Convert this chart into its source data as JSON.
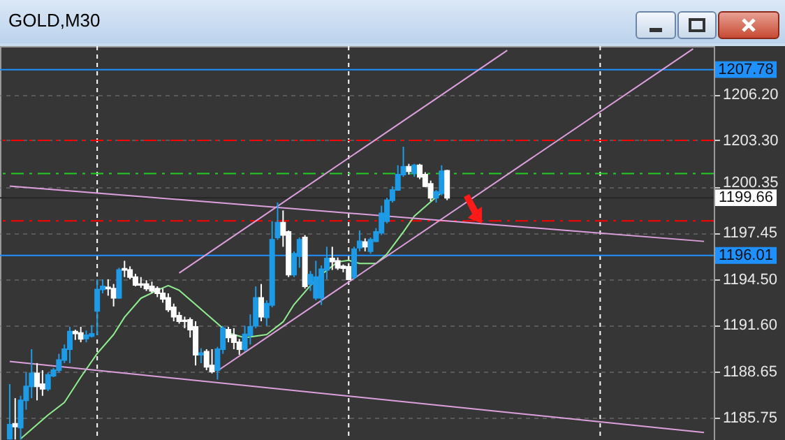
{
  "chart_data": {
    "type": "candlestick",
    "title": "GOLD,M30",
    "categories": [
      null,
      null,
      null,
      null,
      null,
      null,
      null,
      null,
      null,
      null,
      null,
      null,
      null,
      null,
      null,
      null,
      null,
      null,
      null,
      null,
      null,
      null,
      null,
      null,
      null,
      null,
      null,
      null,
      null,
      null,
      null,
      null,
      null,
      null,
      null,
      null,
      null,
      null,
      null,
      null,
      null,
      null,
      null,
      null,
      null,
      null,
      null,
      null,
      null,
      null,
      null,
      null,
      null,
      null,
      null,
      null,
      null,
      null,
      null,
      null,
      null,
      null,
      null,
      null,
      null,
      null,
      null,
      null,
      null,
      null,
      null,
      null,
      null,
      null,
      null,
      null,
      null,
      null,
      null,
      null,
      null,
      null,
      null,
      null,
      null,
      null,
      null,
      null,
      null,
      null,
      null,
      null,
      null,
      null,
      null,
      null,
      null,
      null,
      null,
      null,
      null,
      null,
      null,
      null,
      null,
      null,
      null,
      null,
      null,
      null,
      null,
      null,
      null,
      null,
      null,
      null,
      null,
      null,
      null,
      null,
      null,
      null,
      null,
      null,
      null,
      null,
      null,
      null
    ],
    "ohlc": [
      [
        1184.4,
        1187.86,
        1184.35,
        1185.29
      ],
      [
        1185.35,
        1186.97,
        1184.35,
        1185.17
      ],
      [
        1185.11,
        1187.12,
        1184.35,
        1186.83
      ],
      [
        1186.83,
        1188.59,
        1186.24,
        1187.71
      ],
      [
        1187.71,
        1190.07,
        1186.97,
        1188.54
      ],
      [
        1188.54,
        1189.19,
        1186.83,
        1187.71
      ],
      [
        1187.86,
        1188.74,
        1187.12,
        1187.56
      ],
      [
        1187.56,
        1188.59,
        1187.42,
        1188.45
      ],
      [
        1188.39,
        1188.89,
        1188.3,
        1188.74
      ],
      [
        1188.74,
        1189.78,
        1188.59,
        1189.39
      ],
      [
        1189.39,
        1190.37,
        1189.19,
        1190.07
      ],
      [
        1190.07,
        1191.49,
        1189.19,
        1191.19
      ],
      [
        1191.19,
        1191.31,
        1190.66,
        1191.07
      ],
      [
        1191.1,
        1191.49,
        1190.51,
        1190.72
      ],
      [
        1190.75,
        1191.25,
        1190.51,
        1190.96
      ],
      [
        1190.9,
        1191.6,
        1190.81,
        1191.04
      ],
      [
        1192.49,
        1194.5,
        1190.96,
        1193.85
      ],
      [
        1193.85,
        1194.5,
        1193.61,
        1194.05
      ],
      [
        1193.99,
        1194.5,
        1193.46,
        1193.91
      ],
      [
        1193.91,
        1194.2,
        1192.78,
        1193.32
      ],
      [
        1193.32,
        1195.23,
        1193.26,
        1195.09
      ],
      [
        1195.17,
        1195.67,
        1194.64,
        1195.09
      ],
      [
        1195.09,
        1195.32,
        1194.5,
        1194.64
      ],
      [
        1194.64,
        1194.85,
        1194.05,
        1194.14
      ],
      [
        1194.2,
        1194.64,
        1193.96,
        1194.14
      ],
      [
        1194.2,
        1194.44,
        1193.76,
        1193.91
      ],
      [
        1194.05,
        1194.35,
        1193.61,
        1193.76
      ],
      [
        1193.91,
        1194.05,
        1193.37,
        1193.61
      ],
      [
        1193.61,
        1193.91,
        1193.02,
        1193.26
      ],
      [
        1193.32,
        1193.61,
        1192.43,
        1192.58
      ],
      [
        1192.72,
        1192.96,
        1191.84,
        1192.13
      ],
      [
        1192.19,
        1192.43,
        1191.69,
        1191.84
      ],
      [
        1191.9,
        1192.13,
        1191.4,
        1191.84
      ],
      [
        1191.93,
        1192.08,
        1190.81,
        1191.31
      ],
      [
        1191.49,
        1191.84,
        1189.04,
        1189.72
      ],
      [
        1189.72,
        1190.13,
        1189.19,
        1189.83
      ],
      [
        1189.92,
        1190.07,
        1188.74,
        1188.95
      ],
      [
        1189.04,
        1190.07,
        1188.54,
        1188.65
      ],
      [
        1188.74,
        1190.22,
        1188.15,
        1190.07
      ],
      [
        1190.07,
        1191.55,
        1189.78,
        1191.4
      ],
      [
        1191.31,
        1191.49,
        1190.51,
        1190.81
      ],
      [
        1190.96,
        1191.4,
        1190.07,
        1190.51
      ],
      [
        1190.51,
        1190.72,
        1189.72,
        1190.07
      ],
      [
        1190.07,
        1191.55,
        1189.92,
        1191.01
      ],
      [
        1190.96,
        1192.28,
        1190.37,
        1191.49
      ],
      [
        1191.55,
        1194.05,
        1191.4,
        1193.32
      ],
      [
        1193.32,
        1194.2,
        1191.84,
        1192.13
      ],
      [
        1192.08,
        1193.17,
        1191.55,
        1192.96
      ],
      [
        1192.87,
        1198.18,
        1192.72,
        1197.0
      ],
      [
        1197.15,
        1199.36,
        1197.0,
        1198.09
      ],
      [
        1198.09,
        1198.86,
        1196.56,
        1197.3
      ],
      [
        1197.5,
        1197.59,
        1194.64,
        1194.79
      ],
      [
        1194.79,
        1196.27,
        1194.64,
        1196.12
      ],
      [
        1195.97,
        1197.15,
        1195.23,
        1197.0
      ],
      [
        1197.15,
        1197.3,
        1193.91,
        1194.05
      ],
      [
        1194.2,
        1195.03,
        1193.76,
        1194.79
      ],
      [
        1193.32,
        1195.67,
        1193.17,
        1194.64
      ],
      [
        1193.32,
        1195.38,
        1192.87,
        1195.14
      ],
      [
        1195.09,
        1196.56,
        1194.5,
        1195.82
      ],
      [
        1195.82,
        1196.56,
        1195.09,
        1195.62
      ],
      [
        1195.67,
        1195.88,
        1195.09,
        1195.23
      ],
      [
        1195.32,
        1195.44,
        1194.94,
        1195.2
      ],
      [
        1195.29,
        1195.53,
        1194.44,
        1194.5
      ],
      [
        1194.64,
        1196.56,
        1194.5,
        1196.41
      ],
      [
        1196.5,
        1197.59,
        1196.27,
        1196.91
      ],
      [
        1196.86,
        1197.09,
        1196.27,
        1196.56
      ],
      [
        1196.27,
        1197.15,
        1196.12,
        1197.0
      ],
      [
        1196.91,
        1197.74,
        1196.86,
        1197.5
      ],
      [
        1197.45,
        1199.16,
        1197.3,
        1198.68
      ],
      [
        1198.18,
        1199.66,
        1198.04,
        1199.51
      ],
      [
        1199.51,
        1200.39,
        1199.36,
        1200.16
      ],
      [
        1200.16,
        1201.72,
        1200.1,
        1201.13
      ],
      [
        1201.13,
        1202.9,
        1200.99,
        1201.63
      ],
      [
        1201.63,
        1201.81,
        1201.13,
        1201.34
      ],
      [
        1201.22,
        1201.81,
        1200.99,
        1201.72
      ],
      [
        1201.72,
        1201.81,
        1200.84,
        1200.99
      ],
      [
        1201.13,
        1201.28,
        1200.34,
        1200.39
      ],
      [
        1200.54,
        1200.75,
        1199.45,
        1199.66
      ],
      [
        1199.66,
        1200.16,
        1199.36,
        1200.04
      ],
      [
        1199.95,
        1201.72,
        1199.81,
        1201.34
      ],
      [
        1201.37,
        1201.43,
        1199.51,
        1199.66
      ],
      null,
      null,
      null,
      null,
      null,
      null,
      null,
      null,
      null,
      null,
      null,
      null,
      null,
      null,
      null,
      null,
      null,
      null,
      null,
      null,
      null,
      null,
      null,
      null,
      null,
      null,
      null,
      null,
      null,
      null,
      null,
      null,
      null,
      null,
      null,
      null,
      null,
      null,
      null,
      null,
      null,
      null,
      null,
      null,
      null,
      null,
      null
    ],
    "colors": [
      "#1e9be6",
      "#ffffff",
      "#1e9be6",
      "#1e9be6",
      "#1e9be6",
      "#ffffff",
      "#ffffff",
      "#1e9be6",
      "#1e9be6",
      "#1e9be6",
      "#1e9be6",
      "#1e9be6",
      "#ffffff",
      "#ffffff",
      "#1e9be6",
      "#1e9be6",
      "#1e9be6",
      "#1e9be6",
      "#ffffff",
      "#ffffff",
      "#1e9be6",
      "#ffffff",
      "#ffffff",
      "#ffffff",
      "#ffffff",
      "#ffffff",
      "#ffffff",
      "#ffffff",
      "#ffffff",
      "#ffffff",
      "#ffffff",
      "#ffffff",
      "#ffffff",
      "#ffffff",
      "#ffffff",
      "#1e9be6",
      "#ffffff",
      "#ffffff",
      "#1e9be6",
      "#1e9be6",
      "#ffffff",
      "#ffffff",
      "#ffffff",
      "#1e9be6",
      "#1e9be6",
      "#1e9be6",
      "#ffffff",
      "#1e9be6",
      "#1e9be6",
      "#1e9be6",
      "#ffffff",
      "#ffffff",
      "#1e9be6",
      "#1e9be6",
      "#ffffff",
      "#1e9be6",
      "#1e9be6",
      "#1e9be6",
      "#1e9be6",
      "#ffffff",
      "#ffffff",
      "#ffffff",
      "#ffffff",
      "#1e9be6",
      "#1e9be6",
      "#ffffff",
      "#1e9be6",
      "#1e9be6",
      "#1e9be6",
      "#1e9be6",
      "#1e9be6",
      "#1e9be6",
      "#1e9be6",
      "#ffffff",
      "#1e9be6",
      "#ffffff",
      "#ffffff",
      "#ffffff",
      "#1e9be6",
      "#1e9be6",
      "#ffffff",
      null,
      null,
      null,
      null,
      null,
      null,
      null,
      null,
      null,
      null,
      null,
      null,
      null,
      null,
      null,
      null,
      null,
      null,
      null,
      null,
      null,
      null,
      null,
      null,
      null,
      null,
      null,
      null,
      null,
      null,
      null,
      null,
      null,
      null,
      null,
      null,
      null,
      null,
      null,
      null,
      null,
      null,
      null,
      null,
      null,
      null,
      null
    ],
    "series": [
      {
        "type": "line",
        "color": "#90ee90",
        "values": [
          null,
          null,
          1184.4,
          null,
          null,
          null,
          null,
          1185.9,
          null,
          null,
          1186.7,
          null,
          null,
          1188.3,
          null,
          null,
          1189.8,
          null,
          null,
          1191.0,
          null,
          1192.1,
          null,
          null,
          1193.3,
          null,
          null,
          1193.8,
          null,
          1194.1,
          null,
          1193.8,
          null,
          null,
          1192.9,
          null,
          null,
          null,
          1191.7,
          null,
          1191.1,
          null,
          null,
          1190.8,
          null,
          null,
          null,
          1191.0,
          null,
          null,
          1191.8,
          null,
          1192.9,
          null,
          null,
          1194.1,
          null,
          1194.8,
          null,
          null,
          1195.6,
          null,
          1195.7,
          null,
          1195.5,
          null,
          null,
          1195.5,
          null,
          1196.1,
          null,
          null,
          1197.5,
          null,
          1198.5,
          null,
          null,
          1199.4,
          null,
          1200.0,
          null,
          null,
          null,
          null,
          null,
          null,
          null,
          null,
          null,
          null,
          null,
          null,
          null,
          null,
          null,
          null,
          null,
          null,
          null,
          null,
          null,
          null,
          null,
          null,
          null,
          null,
          null,
          null,
          null,
          null,
          null,
          null,
          null,
          null,
          null,
          null,
          null,
          null,
          null,
          null,
          null,
          null,
          null,
          null,
          null,
          null,
          null,
          null
        ]
      },
      {
        "type": "line",
        "color": "#dda0dd",
        "values": [
          1200.4,
          null,
          null,
          null,
          null,
          null,
          null,
          null,
          null,
          null,
          null,
          null,
          null,
          null,
          null,
          null,
          null,
          null,
          null,
          null,
          null,
          null,
          null,
          null,
          null,
          null,
          null,
          null,
          null,
          null,
          null,
          null,
          null,
          null,
          null,
          null,
          null,
          null,
          null,
          null,
          null,
          null,
          null,
          null,
          null,
          null,
          null,
          null,
          null,
          null,
          null,
          null,
          null,
          null,
          null,
          null,
          null,
          null,
          null,
          null,
          null,
          null,
          null,
          null,
          null,
          null,
          null,
          null,
          null,
          null,
          null,
          null,
          null,
          null,
          null,
          null,
          null,
          null,
          null,
          null,
          null,
          null,
          null,
          null,
          null,
          null,
          null,
          null,
          null,
          null,
          null,
          null,
          null,
          null,
          null,
          null,
          null,
          null,
          null,
          null,
          null,
          null,
          null,
          null,
          null,
          null,
          null,
          null,
          null,
          null,
          null,
          null,
          null,
          null,
          null,
          null,
          null,
          null,
          null,
          null,
          null,
          null,
          null,
          null,
          null,
          null,
          null,
          1196.9
        ]
      },
      {
        "type": "line",
        "color": "#dda0dd",
        "values": [
          1189.3,
          null,
          null,
          null,
          null,
          null,
          null,
          null,
          null,
          null,
          null,
          null,
          null,
          null,
          null,
          null,
          null,
          null,
          null,
          null,
          null,
          null,
          null,
          null,
          null,
          null,
          null,
          null,
          null,
          null,
          null,
          null,
          null,
          null,
          null,
          null,
          null,
          null,
          null,
          null,
          null,
          null,
          null,
          null,
          null,
          null,
          null,
          null,
          null,
          null,
          null,
          null,
          null,
          null,
          null,
          null,
          null,
          null,
          null,
          null,
          null,
          null,
          null,
          null,
          null,
          null,
          null,
          null,
          null,
          null,
          null,
          null,
          null,
          null,
          null,
          null,
          null,
          null,
          null,
          null,
          null,
          null,
          null,
          null,
          null,
          null,
          null,
          null,
          null,
          null,
          null,
          null,
          null,
          null,
          null,
          null,
          null,
          null,
          null,
          null,
          null,
          null,
          null,
          null,
          null,
          null,
          null,
          null,
          null,
          null,
          null,
          null,
          null,
          null,
          null,
          null,
          null,
          null,
          null,
          null,
          null,
          null,
          null,
          null,
          null,
          null,
          null,
          1184.8
        ]
      },
      {
        "type": "line",
        "color": "#dda0dd",
        "values": [
          null,
          null,
          null,
          null,
          null,
          null,
          null,
          null,
          null,
          null,
          null,
          null,
          null,
          null,
          null,
          null,
          null,
          null,
          null,
          null,
          null,
          null,
          null,
          null,
          null,
          null,
          null,
          null,
          null,
          null,
          null,
          null,
          null,
          null,
          null,
          null,
          null,
          null,
          1188.7,
          null,
          null,
          null,
          null,
          null,
          null,
          null,
          null,
          null,
          null,
          null,
          null,
          null,
          null,
          null,
          null,
          null,
          null,
          null,
          null,
          null,
          null,
          null,
          null,
          null,
          null,
          null,
          null,
          null,
          null,
          null,
          null,
          null,
          null,
          null,
          null,
          null,
          null,
          null,
          null,
          null,
          null,
          null,
          null,
          null,
          null,
          null,
          null,
          null,
          null,
          null,
          null,
          null,
          null,
          null,
          null,
          null,
          null,
          null,
          null,
          null,
          null,
          null,
          null,
          null,
          null,
          null,
          null,
          null,
          null,
          null,
          null,
          null,
          null,
          null,
          null,
          null,
          null,
          null,
          null,
          null,
          null,
          null,
          null,
          null,
          null,
          1209.1,
          null,
          null
        ]
      },
      {
        "type": "line",
        "color": "#dda0dd",
        "values": [
          null,
          null,
          null,
          null,
          null,
          null,
          null,
          null,
          null,
          null,
          null,
          null,
          null,
          null,
          null,
          null,
          null,
          null,
          null,
          null,
          null,
          null,
          null,
          null,
          null,
          null,
          null,
          null,
          null,
          null,
          null,
          1194.9,
          null,
          null,
          null,
          null,
          null,
          null,
          null,
          null,
          null,
          null,
          null,
          null,
          null,
          null,
          null,
          null,
          null,
          null,
          null,
          null,
          null,
          null,
          null,
          null,
          null,
          null,
          null,
          null,
          null,
          null,
          null,
          null,
          null,
          null,
          null,
          null,
          null,
          null,
          null,
          null,
          null,
          null,
          null,
          null,
          null,
          null,
          null,
          null,
          null,
          null,
          null,
          null,
          null,
          null,
          null,
          null,
          null,
          null,
          null,
          1209.0,
          null,
          null,
          null,
          null,
          null,
          null,
          null,
          null,
          null,
          null,
          null,
          null,
          null,
          null,
          null,
          null,
          null,
          null,
          null,
          null,
          null,
          null,
          null,
          null,
          null,
          null,
          null,
          null,
          null,
          null,
          null,
          null,
          null,
          null,
          null,
          null
        ]
      }
    ],
    "ylim": [
      1184.32,
      1209.27
    ],
    "yticks": [
      {
        "value": 1185.75,
        "label": "1185.75"
      },
      {
        "value": 1188.65,
        "label": "1188.65"
      },
      {
        "value": 1191.6,
        "label": "1191.60"
      },
      {
        "value": 1194.5,
        "label": "1194.50"
      },
      {
        "value": 1197.45,
        "label": "1197.45"
      },
      {
        "value": 1200.35,
        "label": "1200.35"
      },
      {
        "value": 1203.3,
        "label": "1203.30"
      },
      {
        "value": 1206.2,
        "label": "1206.20"
      }
    ],
    "ref_lines": [
      {
        "axis": "y",
        "value": 1207.78,
        "label": "1207.78",
        "color": "#1e90ff",
        "line_style": "solid"
      },
      {
        "axis": "y",
        "value": 1203.3,
        "color": "#ff0000",
        "line_style": "dashed"
      },
      {
        "axis": "y",
        "value": 1201.2,
        "color": "#22cc22",
        "line_style": "dashed"
      },
      {
        "axis": "y",
        "value": 1198.2,
        "color": "#ff0000",
        "line_style": "dashed"
      },
      {
        "axis": "y",
        "value": 1199.66,
        "label": "1199.66",
        "color": "#262626",
        "line_style": "solid"
      },
      {
        "axis": "y",
        "value": 1196.01,
        "label": "1196.01",
        "color": "#1e90ff",
        "line_style": "solid"
      }
    ],
    "grid": "y",
    "tick_labels": "y"
  }
}
